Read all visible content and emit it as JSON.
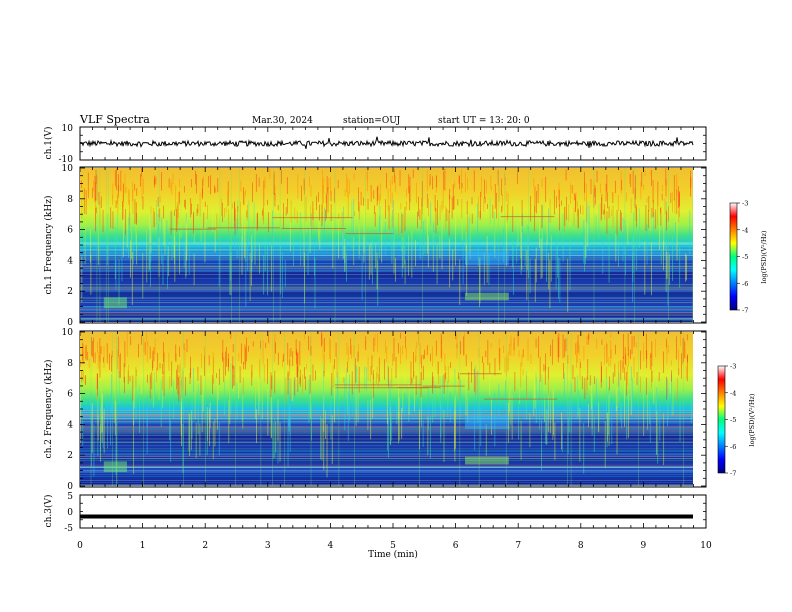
{
  "header": {
    "title": "VLF Spectra",
    "date": "Mar.30, 2024",
    "station": "station=OUJ",
    "start": "start  UT =  13: 20: 0"
  },
  "chart_data": [
    {
      "type": "line",
      "panel": "ch1-waveform",
      "ylabel": "ch.1(V)",
      "ylim": [
        -10,
        10
      ],
      "yticks": [
        "10",
        "-10"
      ],
      "xlim": [
        0,
        10
      ]
    },
    {
      "type": "heatmap",
      "panel": "ch1-spectrogram",
      "ylabel": "ch.1 Frequency (kHz)",
      "ylim": [
        0,
        10
      ],
      "yticks": [
        "0",
        "2",
        "4",
        "6",
        "8",
        "10"
      ],
      "xlim": [
        0,
        10
      ],
      "colorbar": {
        "label": "log(PSD)(V²/Hz)",
        "range": [
          -7,
          -3
        ],
        "ticks": [
          "-3",
          "-4",
          "-5",
          "-6",
          "-7"
        ]
      }
    },
    {
      "type": "heatmap",
      "panel": "ch2-spectrogram",
      "ylabel": "ch.2 Frequency (kHz)",
      "ylim": [
        0,
        10
      ],
      "yticks": [
        "0",
        "2",
        "4",
        "6",
        "8",
        "10"
      ],
      "xlim": [
        0,
        10
      ],
      "colorbar": {
        "label": "log(PSD)(V²/Hz)",
        "range": [
          -7,
          -3
        ],
        "ticks": [
          "-3",
          "-4",
          "-5",
          "-6",
          "-7"
        ]
      }
    },
    {
      "type": "line",
      "panel": "ch3-waveform",
      "ylabel": "ch.3(V)",
      "ylim": [
        -5,
        5
      ],
      "yticks": [
        "5",
        "0",
        "-5"
      ],
      "xlim": [
        0,
        10
      ]
    }
  ],
  "xaxis": {
    "label": "Time (min)",
    "ticks": [
      "0",
      "1",
      "2",
      "3",
      "4",
      "5",
      "6",
      "7",
      "8",
      "9",
      "10"
    ],
    "range": [
      0,
      10
    ]
  },
  "colors": {
    "low": "#00007f",
    "mid": "#00ff80",
    "high": "#ff0000"
  }
}
